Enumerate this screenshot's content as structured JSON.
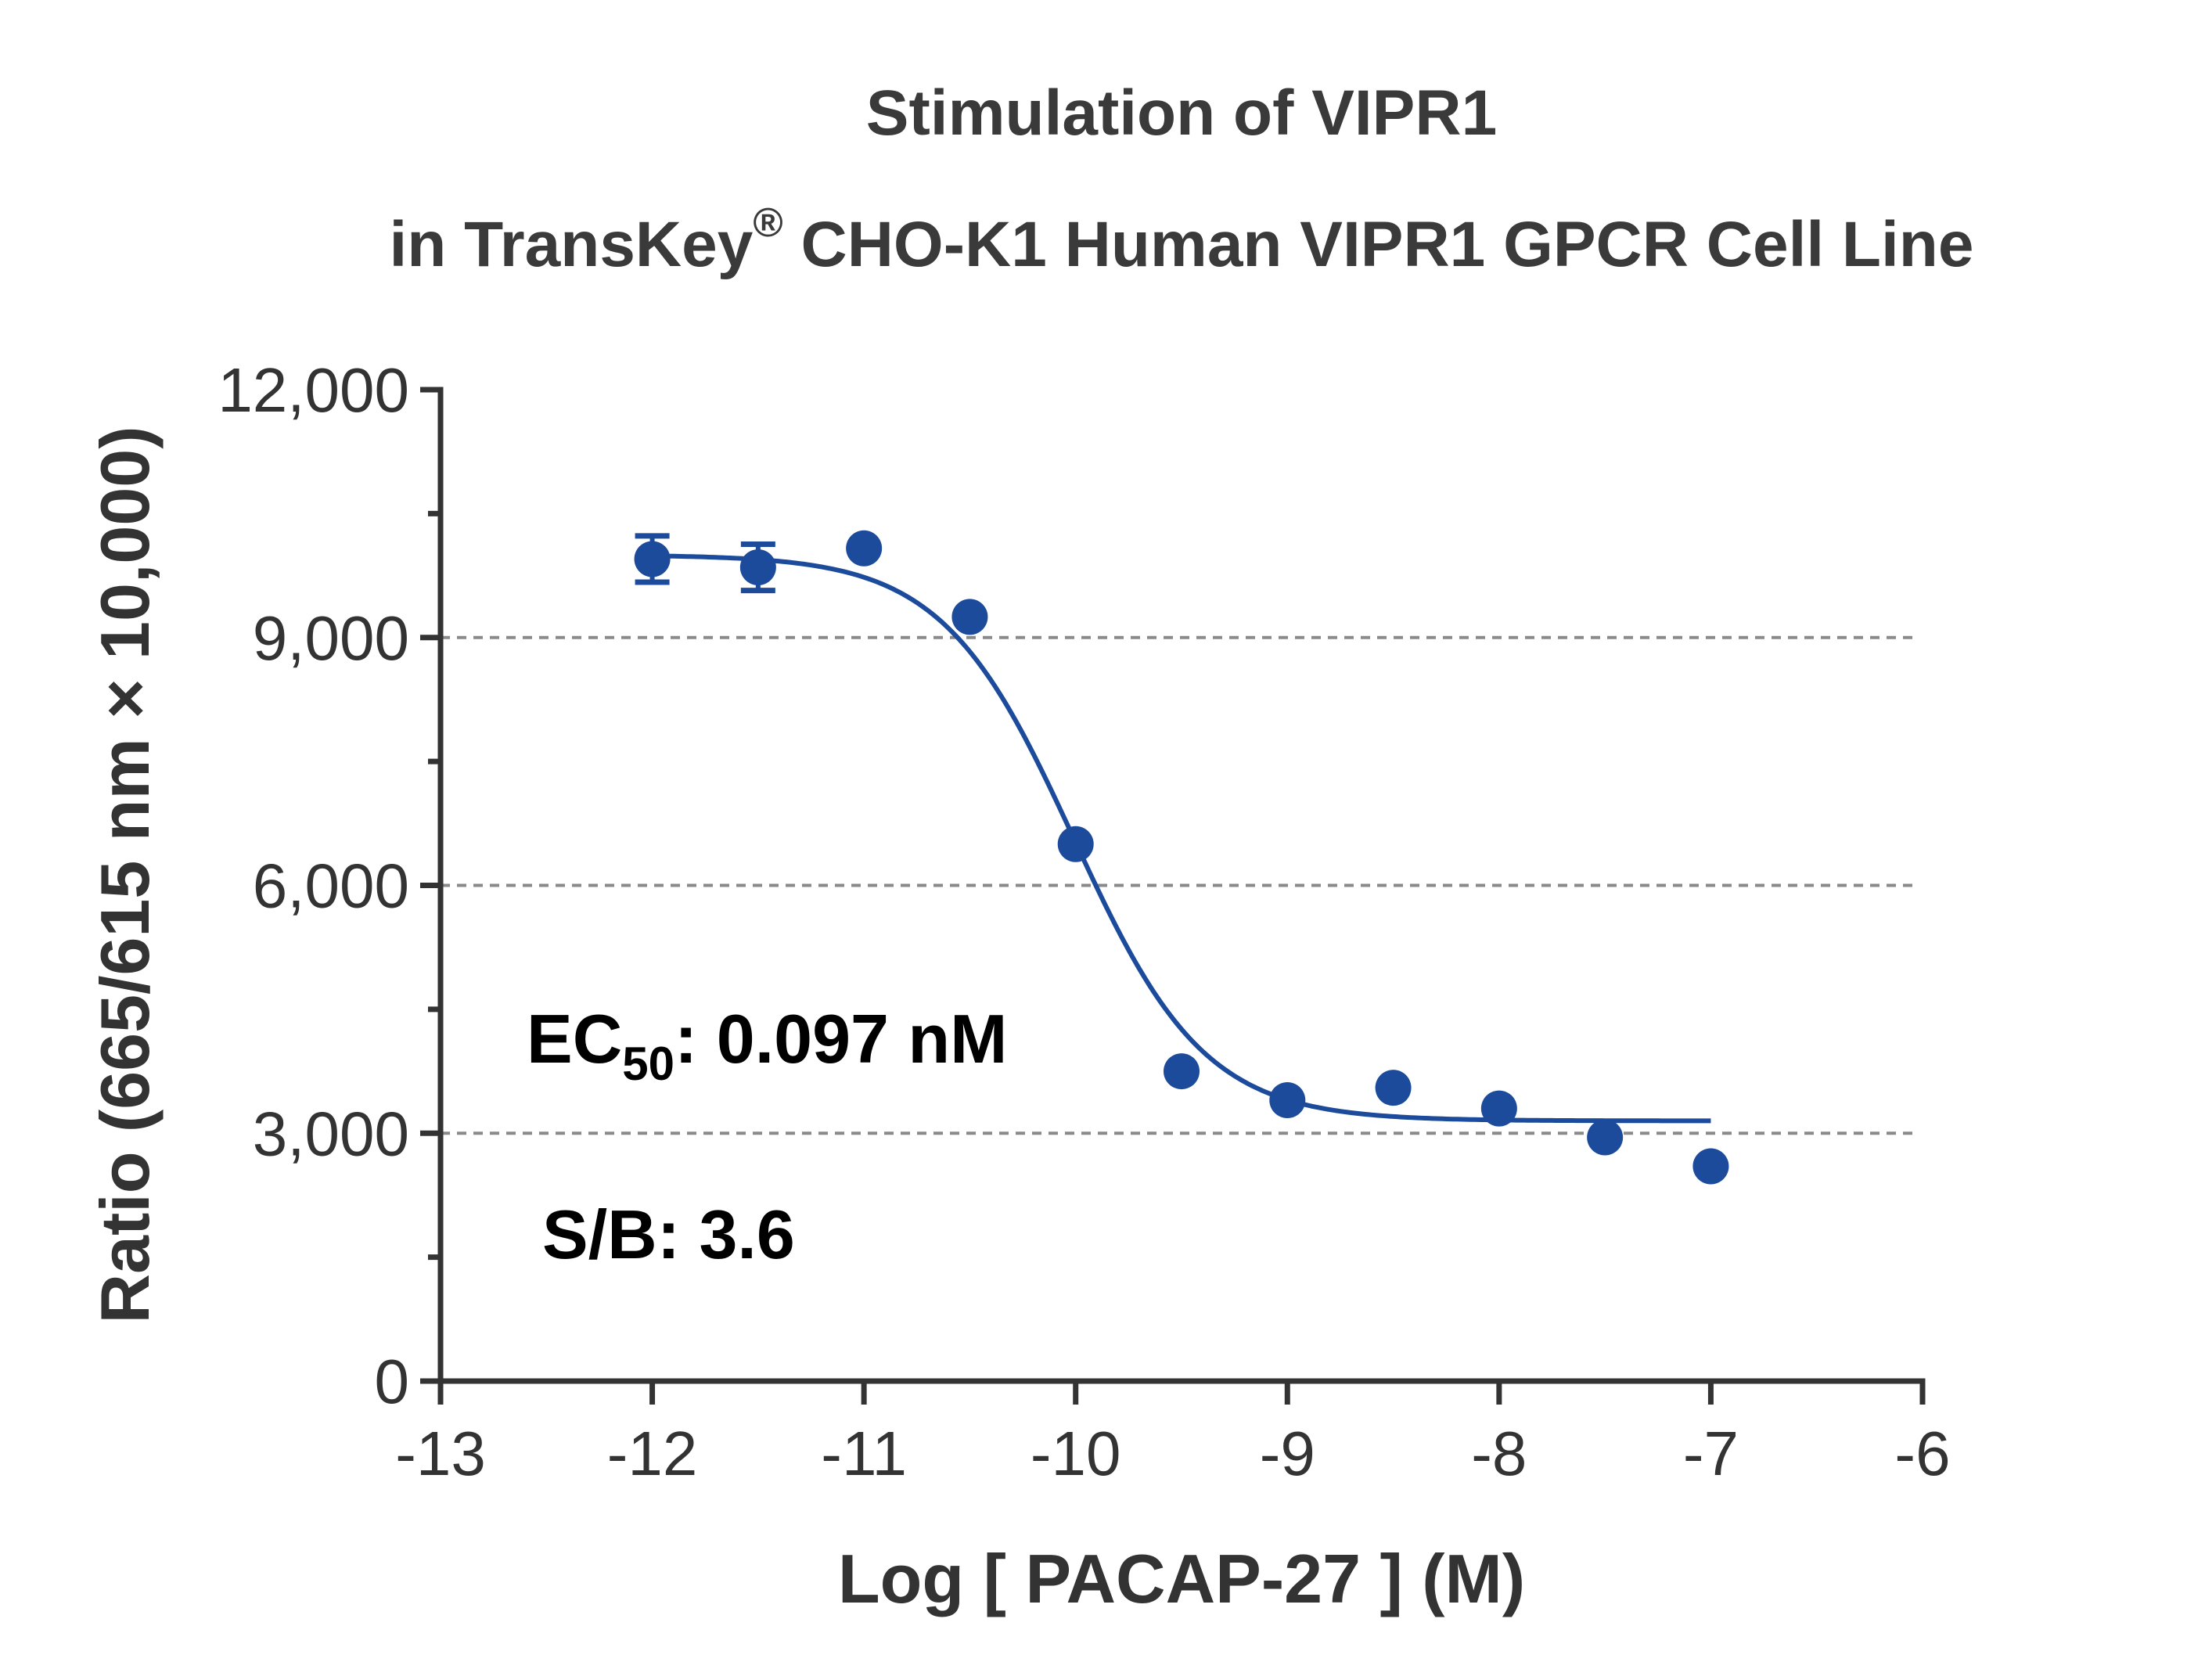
{
  "chart_data": {
    "type": "scatter",
    "title_line1": "Stimulation of  VIPR1",
    "title_line2_pre": "in TransKey",
    "title_line2_sup": "®",
    "title_line2_post": " CHO-K1 Human VIPR1 GPCR Cell Line",
    "xlabel": "Log [ PACAP-27 ]  (M)",
    "ylabel": "Ratio (665/615 nm × 10,000)",
    "xlim": [
      -13,
      -6
    ],
    "ylim": [
      0,
      12000
    ],
    "x_ticks": [
      -13,
      -12,
      -11,
      -10,
      -9,
      -8,
      -7,
      -6
    ],
    "x_tick_labels": [
      "-13",
      "-12",
      "-11",
      "-10",
      "-9",
      "-8",
      "-7",
      "-6"
    ],
    "y_ticks": [
      0,
      3000,
      6000,
      9000,
      12000
    ],
    "y_tick_labels": [
      "0",
      "3,000",
      "6,000",
      "9,000",
      "12,000"
    ],
    "y_minor_ticks": [
      1500,
      4500,
      7500,
      10500
    ],
    "gridlines_y": [
      3000,
      6000,
      9000
    ],
    "grid": "dashed horizontal at 3,000 / 6,000 / 9,000",
    "points": [
      {
        "x": -12.0,
        "y": 9950,
        "err": 280
      },
      {
        "x": -11.5,
        "y": 9850,
        "err": 280
      },
      {
        "x": -11.0,
        "y": 10080,
        "err": 0
      },
      {
        "x": -10.5,
        "y": 9250,
        "err": 0
      },
      {
        "x": -10.0,
        "y": 6500,
        "err": 0
      },
      {
        "x": -9.5,
        "y": 3750,
        "err": 0
      },
      {
        "x": -9.0,
        "y": 3400,
        "err": 0
      },
      {
        "x": -8.5,
        "y": 3550,
        "err": 0
      },
      {
        "x": -8.0,
        "y": 3300,
        "err": 0
      },
      {
        "x": -7.5,
        "y": 2950,
        "err": 0
      },
      {
        "x": -7.0,
        "y": 2600,
        "err": 0
      }
    ],
    "fit": {
      "top": 10000,
      "bottom": 3150,
      "log_ec50": -10.01,
      "hill_slope": -1.4,
      "x_range": [
        -12,
        -7
      ]
    },
    "annotations": {
      "ec50_prefix": "EC",
      "ec50_sub": "50",
      "ec50_value": ": 0.097 nM",
      "sb": "S/B: 3.6"
    },
    "colors": {
      "series": "#1c4b9c",
      "axis": "#333333",
      "grid": "#8a8a8a",
      "title": "#3a3a3a"
    }
  }
}
